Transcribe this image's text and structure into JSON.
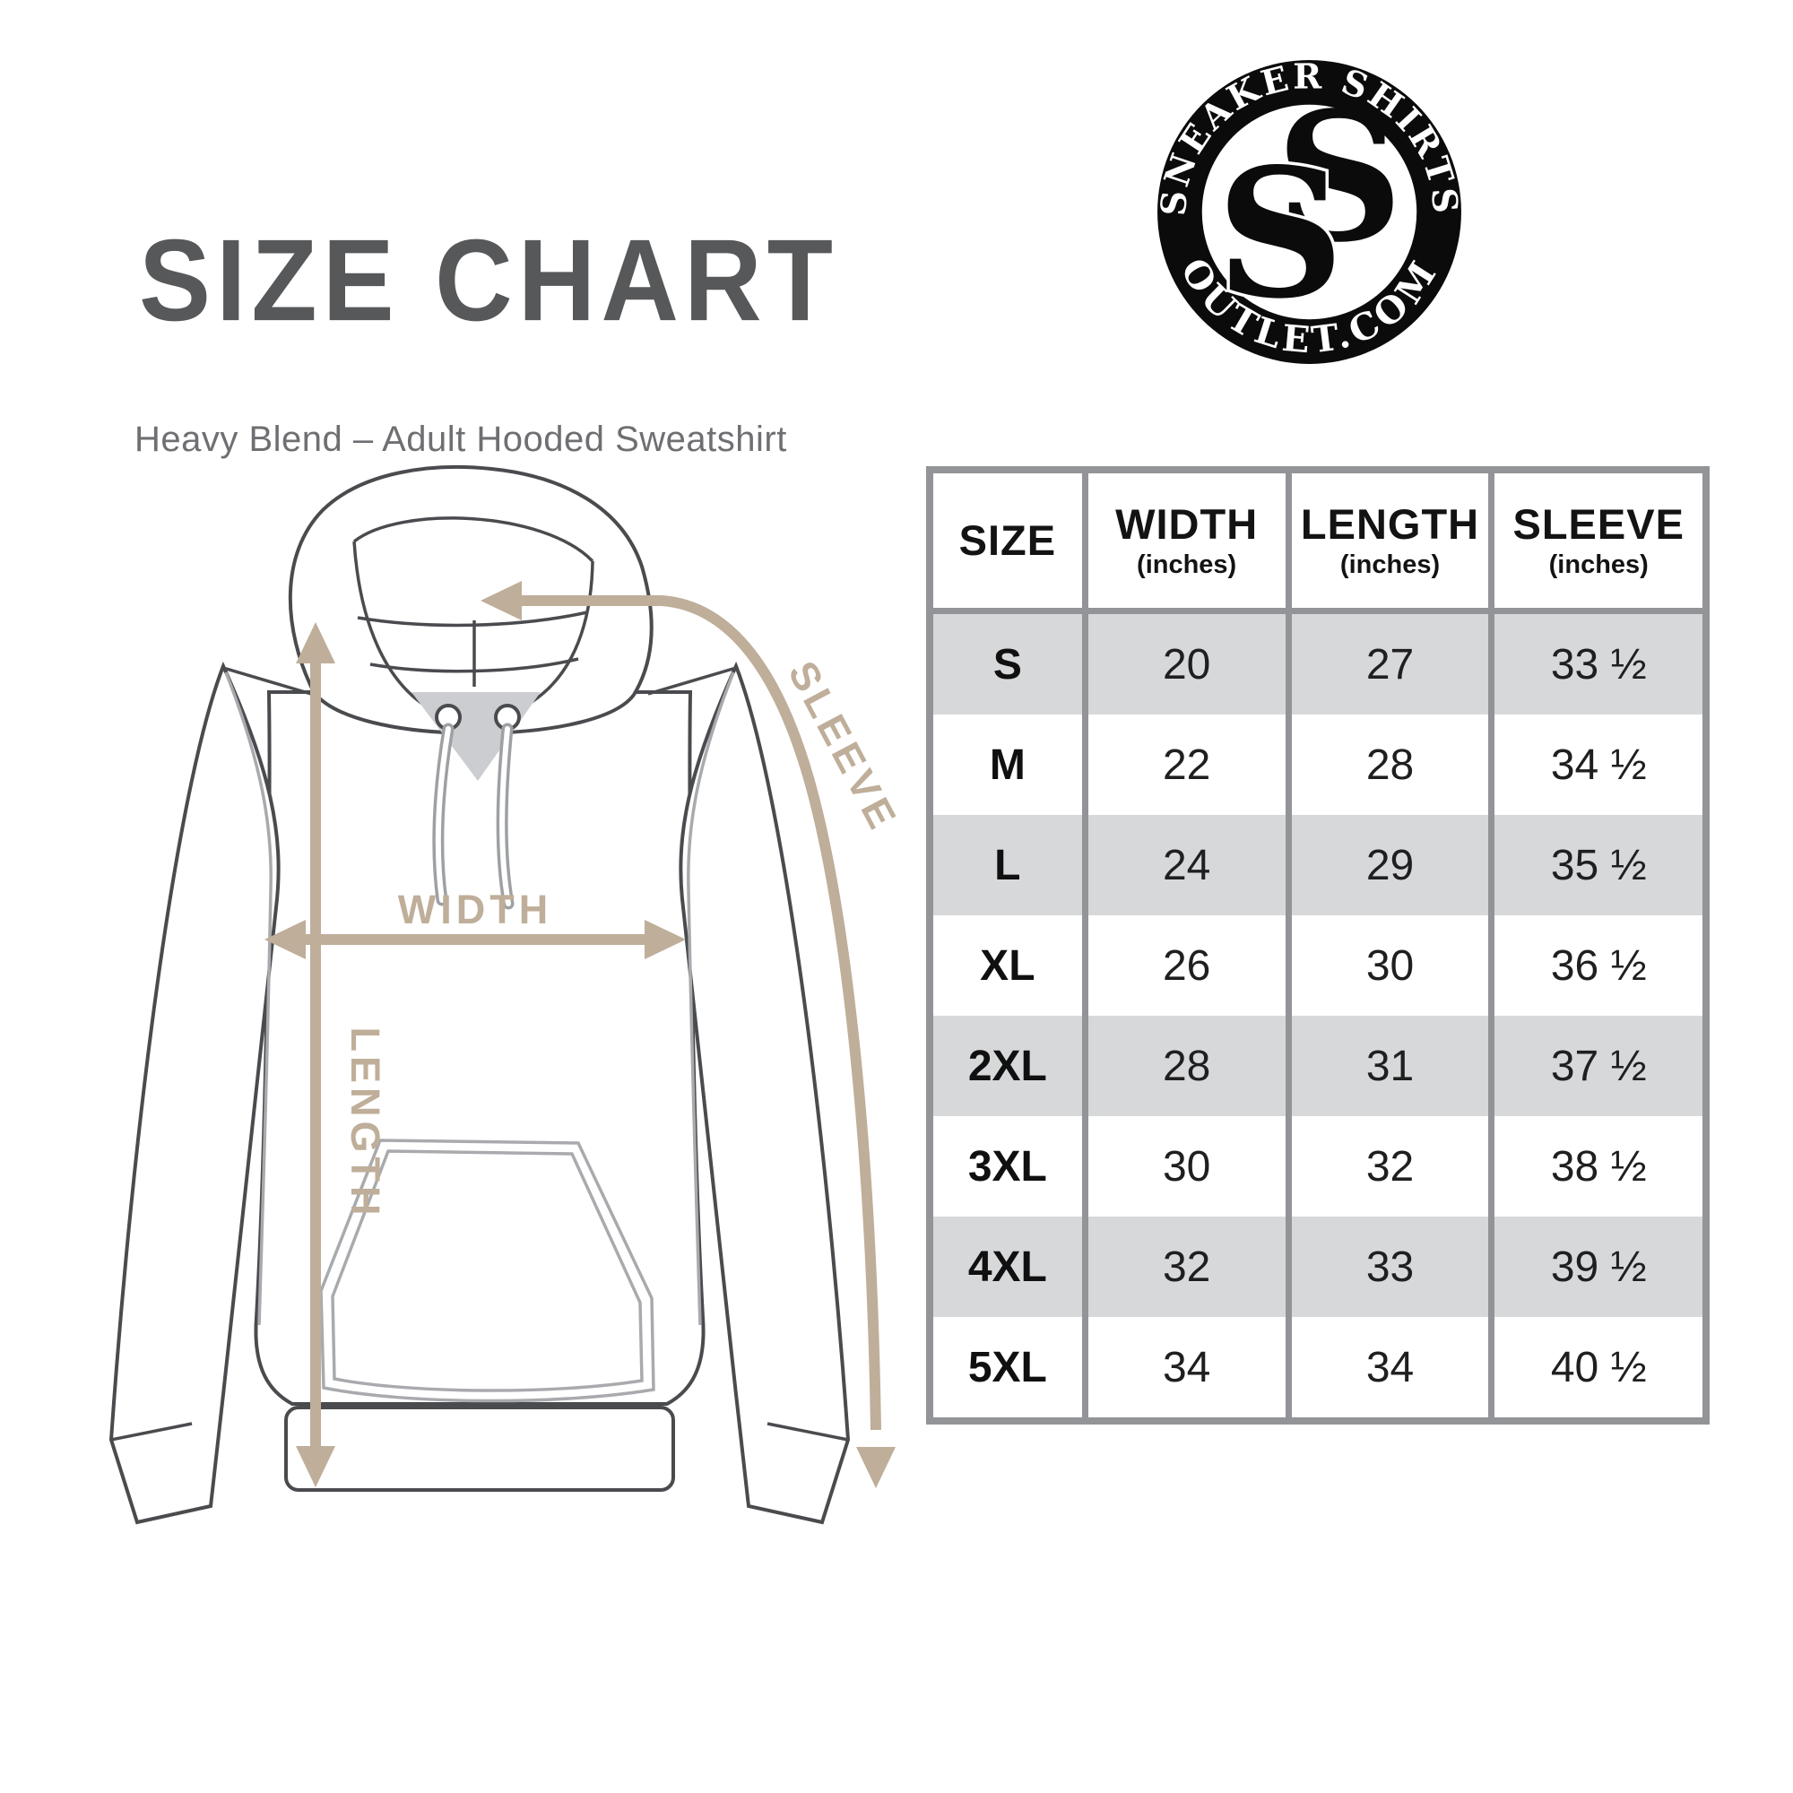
{
  "header": {
    "title": "SIZE CHART",
    "subtitle": "Heavy Blend – Adult Hooded Sweatshirt"
  },
  "logo": {
    "top_text": "SNEAKER SHIRTS",
    "bottom_text": "OUTLET.COM",
    "monogram_s": "S"
  },
  "diagram": {
    "width_label": "WIDTH",
    "length_label": "LENGTH",
    "sleeve_label": "SLEEVE"
  },
  "size_table": {
    "columns": [
      {
        "label": "SIZE",
        "sublabel": ""
      },
      {
        "label": "WIDTH",
        "sublabel": "(inches)"
      },
      {
        "label": "LENGTH",
        "sublabel": "(inches)"
      },
      {
        "label": "SLEEVE",
        "sublabel": "(inches)"
      }
    ],
    "rows": [
      {
        "size": "S",
        "width": "20",
        "length": "27",
        "sleeve": "33 ½"
      },
      {
        "size": "M",
        "width": "22",
        "length": "28",
        "sleeve": "34 ½"
      },
      {
        "size": "L",
        "width": "24",
        "length": "29",
        "sleeve": "35 ½"
      },
      {
        "size": "XL",
        "width": "26",
        "length": "30",
        "sleeve": "36 ½"
      },
      {
        "size": "2XL",
        "width": "28",
        "length": "31",
        "sleeve": "37 ½"
      },
      {
        "size": "3XL",
        "width": "30",
        "length": "32",
        "sleeve": "38 ½"
      },
      {
        "size": "4XL",
        "width": "32",
        "length": "33",
        "sleeve": "39 ½"
      },
      {
        "size": "5XL",
        "width": "34",
        "length": "34",
        "sleeve": "40 ½"
      }
    ]
  },
  "colors": {
    "accent_tan": "#bfae99",
    "line_dark": "#4a4b4e",
    "line_light": "#a8aaad",
    "table_border": "#929497",
    "row_alt": "#d7d8da",
    "title": "#57585a",
    "subtitle": "#6e6f72",
    "logo_black": "#0b0b0b"
  }
}
